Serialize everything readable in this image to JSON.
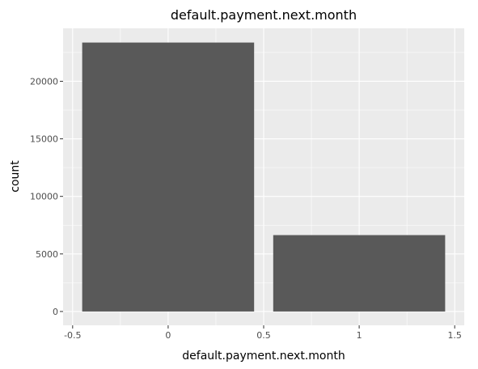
{
  "chart_data": {
    "type": "bar",
    "title": "default.payment.next.month",
    "xlabel": "default.payment.next.month",
    "ylabel": "count",
    "x": [
      0,
      1
    ],
    "values": [
      23364,
      6636
    ],
    "bar_width": 0.9,
    "xlim": [
      -0.55,
      1.55
    ],
    "ylim": [
      -1200,
      24600
    ],
    "x_ticks": [
      -0.5,
      0,
      0.5,
      1,
      1.5
    ],
    "x_tick_labels": [
      "-0.5",
      "0",
      "0.5",
      "1",
      "1.5"
    ],
    "y_ticks": [
      0,
      5000,
      10000,
      15000,
      20000
    ],
    "y_tick_labels": [
      "0",
      "5000",
      "10000",
      "15000",
      "20000"
    ],
    "grid": true,
    "legend": "none"
  },
  "colors": {
    "panel_background": "#EBEBEB",
    "bar_fill": "#595959",
    "grid": "#FFFFFF",
    "tick_text": "#4D4D4D"
  }
}
